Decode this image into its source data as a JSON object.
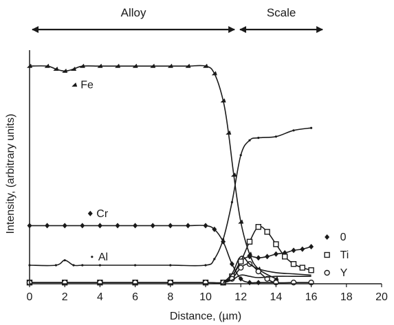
{
  "chart_data": {
    "type": "line",
    "xlabel": "Distance, (µm)",
    "ylabel": "Intensity, (arbitrary units)",
    "xlim": [
      0,
      20
    ],
    "ylim": [
      0,
      100
    ],
    "x_ticks": [
      "0",
      "2",
      "4",
      "6",
      "8",
      "10",
      "12",
      "14",
      "16",
      "18",
      "20"
    ],
    "regions": [
      {
        "label": "Alloy",
        "from": 0,
        "to": 11.8
      },
      {
        "label": "Scale",
        "from": 11.8,
        "to": 16.8
      }
    ],
    "series": [
      {
        "name": "Fe",
        "color": "#1a1a1a",
        "marker": "triangle",
        "x": [
          0,
          1,
          1.5,
          2,
          2.5,
          3,
          4,
          5,
          6,
          7,
          8,
          9,
          10,
          10.5,
          11,
          11.3,
          11.6,
          12,
          12.5,
          13,
          14
        ],
        "y": [
          88.0,
          88.0,
          86.8,
          86.0,
          86.8,
          88.0,
          88.0,
          88.0,
          88.0,
          88.0,
          88.0,
          88.0,
          88.0,
          85.0,
          74.0,
          61.0,
          44.0,
          25.0,
          12.0,
          6.0,
          2.0
        ]
      },
      {
        "name": "Cr",
        "color": "#1a1a1a",
        "marker": "diamond",
        "x": [
          0,
          1,
          2,
          3,
          4,
          5,
          6,
          7,
          8,
          9,
          10,
          10.5,
          11,
          11.5,
          12,
          12.5,
          13,
          14
        ],
        "y": [
          23.5,
          23.5,
          23.5,
          23.5,
          23.5,
          23.5,
          23.5,
          23.5,
          23.5,
          23.5,
          23.5,
          22.0,
          17.0,
          8.0,
          2.0,
          0.5,
          0.5,
          0.5
        ]
      },
      {
        "name": "Al",
        "color": "#1a1a1a",
        "marker": "dot",
        "x": [
          0,
          1.5,
          2,
          2.5,
          3,
          4,
          6,
          8,
          10,
          10.5,
          11,
          11.5,
          12,
          12.5,
          13,
          14,
          15,
          16
        ],
        "y": [
          7.5,
          7.5,
          9.5,
          7.5,
          7.5,
          7.5,
          7.5,
          7.5,
          7.5,
          10.0,
          18.0,
          33.0,
          52.0,
          58.0,
          59.0,
          59.5,
          62.0,
          63.0
        ]
      },
      {
        "name": "0",
        "color": "#1a1a1a",
        "marker": "diamond",
        "x": [
          11,
          11.5,
          12,
          12.5,
          13,
          13.5,
          14,
          14.5,
          15,
          15.5,
          16
        ],
        "y": [
          0.5,
          3.0,
          9.0,
          11.0,
          10.5,
          11.0,
          12.0,
          12.5,
          13.5,
          14.0,
          15.0
        ]
      },
      {
        "name": "Ti",
        "color": "#1a1a1a",
        "marker": "square",
        "x": [
          0,
          2,
          4,
          6,
          8,
          10,
          11,
          11.5,
          12,
          12.5,
          13,
          13.5,
          14,
          14.5,
          15,
          15.5,
          16
        ],
        "y": [
          0.5,
          0.5,
          0.5,
          0.5,
          0.5,
          0.5,
          0.5,
          3.0,
          9.0,
          17.0,
          23.0,
          21.0,
          16.0,
          11.0,
          8.0,
          6.5,
          5.5
        ]
      },
      {
        "name": "Y",
        "color": "#1a1a1a",
        "marker": "circle",
        "x": [
          0,
          2,
          4,
          6,
          8,
          10,
          11,
          11.5,
          12,
          12.5,
          13,
          13.5,
          14,
          15,
          16
        ],
        "y": [
          0.5,
          0.5,
          0.5,
          0.5,
          0.5,
          0.5,
          0.5,
          2.0,
          6.5,
          8.0,
          5.0,
          2.0,
          0.5,
          0.5,
          0.5
        ]
      },
      {
        "name": "",
        "color": "#1a1a1a",
        "marker": "none",
        "x": [
          11,
          11.5,
          12,
          12.5,
          13,
          14,
          15,
          16
        ],
        "y": [
          0.5,
          4.0,
          11.0,
          8.0,
          6.0,
          4.5,
          4.0,
          3.5
        ]
      },
      {
        "name": "",
        "color": "#1a1a1a",
        "marker": "none",
        "x": [
          11,
          11.5,
          12,
          12.5,
          13,
          14,
          15,
          16
        ],
        "y": [
          0.5,
          1.5,
          3.5,
          3.0,
          2.5,
          3.0,
          3.0,
          3.0
        ]
      }
    ],
    "annotations": [
      {
        "text": "Fe",
        "x": 2.9,
        "y": 79
      },
      {
        "text": "Cr",
        "x": 3.8,
        "y": 27
      },
      {
        "text": "Al",
        "x": 3.9,
        "y": 9.5
      }
    ],
    "legend": {
      "placement": "bottom-right",
      "entries": [
        {
          "marker": "diamond",
          "label": "0"
        },
        {
          "marker": "square",
          "label": "Ti"
        },
        {
          "marker": "circle",
          "label": "Y"
        }
      ]
    },
    "grid": false
  }
}
